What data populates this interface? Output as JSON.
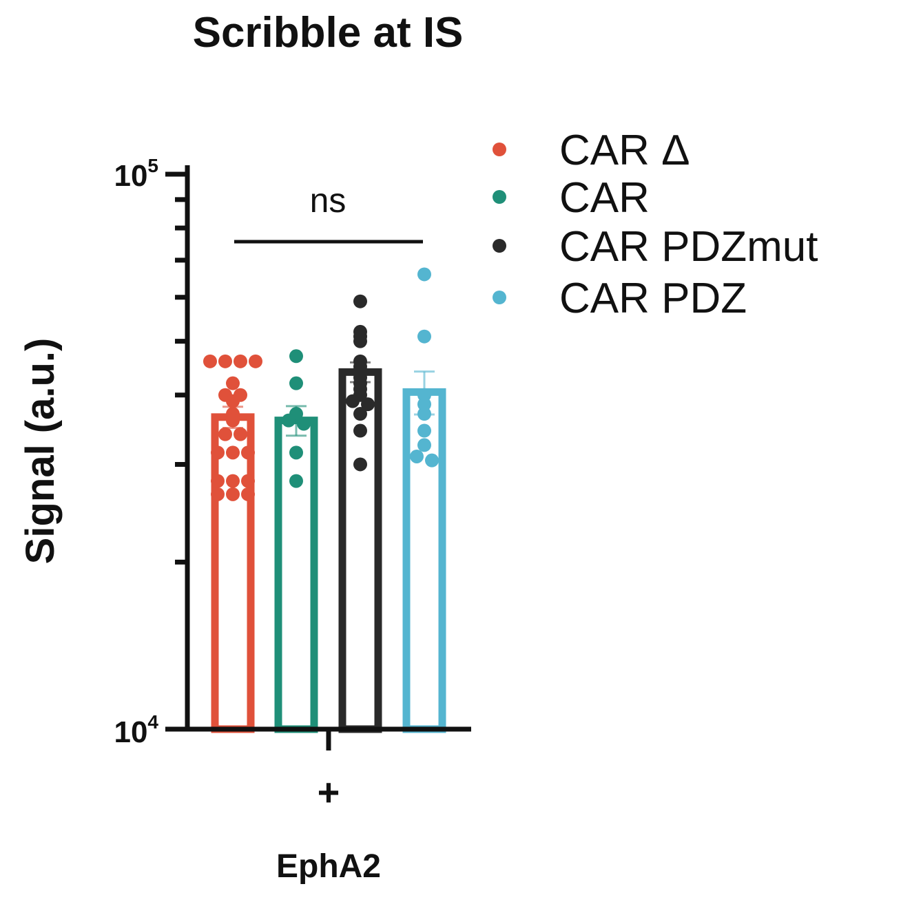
{
  "chart_data": {
    "type": "bar",
    "title": "Scribble at IS",
    "ylabel": "Signal (a.u.)",
    "xlabel": "EphA2",
    "x_category": "+",
    "yscale": "log",
    "ylim": [
      10000,
      100000
    ],
    "y_ticks": [
      {
        "base": "10",
        "exp": "5",
        "value": 100000
      },
      {
        "base": "10",
        "exp": "4",
        "value": 10000
      }
    ],
    "annotation": "ns",
    "legend_position": "right",
    "series": [
      {
        "name": "CAR Δ",
        "color": "#e0513a",
        "mean": 36500,
        "sem": 1600,
        "points": [
          46000,
          46000,
          46000,
          46000,
          42000,
          40000,
          40000,
          39000,
          37000,
          36000,
          34000,
          34000,
          31500,
          31500,
          31500,
          28000,
          28000,
          28000,
          26500,
          26500,
          26500
        ]
      },
      {
        "name": "CAR",
        "color": "#1f8f78",
        "mean": 36000,
        "sem": 2200,
        "points": [
          47000,
          42000,
          37000,
          36000,
          35500,
          31500,
          28000
        ]
      },
      {
        "name": "CAR PDZmut",
        "color": "#2a2a2a",
        "mean": 44000,
        "sem": 1800,
        "points": [
          59000,
          52000,
          51000,
          50000,
          46000,
          45000,
          44000,
          43000,
          42000,
          41000,
          40000,
          39000,
          38500,
          37000,
          34500,
          30000
        ]
      },
      {
        "name": "CAR PDZ",
        "color": "#54b5d0",
        "mean": 40500,
        "sem": 3600,
        "points": [
          66000,
          51000,
          40000,
          38500,
          37000,
          34500,
          32500,
          31000,
          30500
        ]
      }
    ]
  }
}
